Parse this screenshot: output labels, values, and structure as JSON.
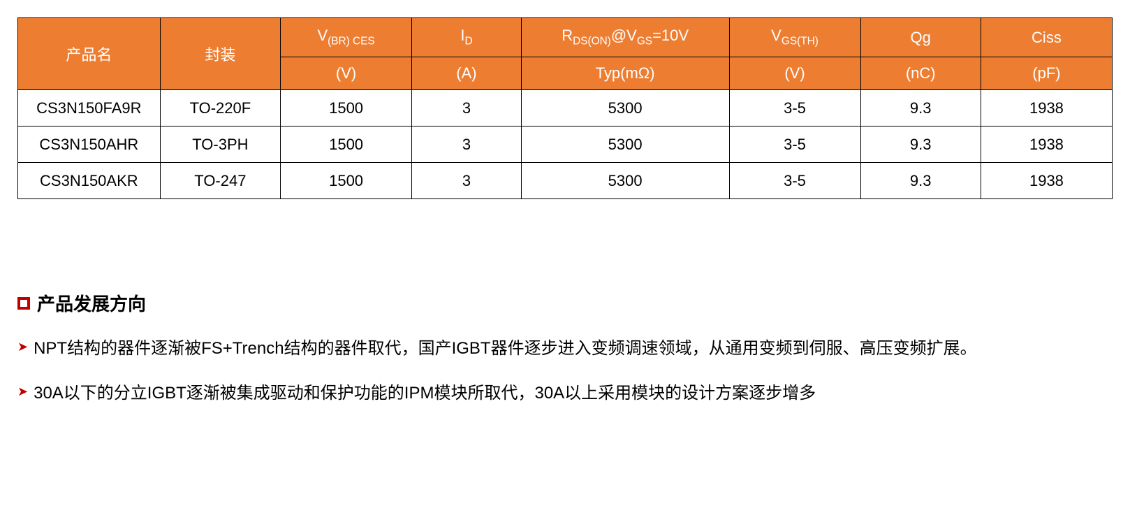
{
  "table": {
    "header_bg": "#ed7d31",
    "header_fg": "#ffffff",
    "border_color": "#000000",
    "columns": {
      "product": {
        "label": "产品名"
      },
      "package": {
        "label": "封装"
      },
      "vbr": {
        "symbol_pre": "V",
        "symbol_sub": "(BR) CES",
        "unit": "(V)"
      },
      "id": {
        "symbol_pre": "I",
        "symbol_sub": "D",
        "unit": "(A)"
      },
      "rds": {
        "symbol_pre": "R",
        "symbol_sub1": "DS(ON)",
        "symbol_mid": "@V",
        "symbol_sub2": "GS",
        "symbol_post": "=10V",
        "unit": "Typ(mΩ)"
      },
      "vgs": {
        "symbol_pre": "V",
        "symbol_sub": "GS(TH)",
        "unit": "(V)"
      },
      "qg": {
        "label": "Qg",
        "unit": "(nC)"
      },
      "ciss": {
        "label": "Ciss",
        "unit": "(pF)"
      }
    },
    "rows": [
      {
        "product": "CS3N150FA9R",
        "package": "TO-220F",
        "vbr": "1500",
        "id": "3",
        "rds": "5300",
        "vgs": "3-5",
        "qg": "9.3",
        "ciss": "1938"
      },
      {
        "product": "CS3N150AHR",
        "package": "TO-3PH",
        "vbr": "1500",
        "id": "3",
        "rds": "5300",
        "vgs": "3-5",
        "qg": "9.3",
        "ciss": "1938"
      },
      {
        "product": "CS3N150AKR",
        "package": "TO-247",
        "vbr": "1500",
        "id": "3",
        "rds": "5300",
        "vgs": "3-5",
        "qg": "9.3",
        "ciss": "1938"
      }
    ]
  },
  "section": {
    "heading": "产品发展方向",
    "bullets": [
      "NPT结构的器件逐渐被FS+Trench结构的器件取代，国产IGBT器件逐步进入变频调速领域，从通用变频到伺服、高压变频扩展。",
      "30A以下的分立IGBT逐渐被集成驱动和保护功能的IPM模块所取代，30A以上采用模块的设计方案逐步增多"
    ]
  }
}
